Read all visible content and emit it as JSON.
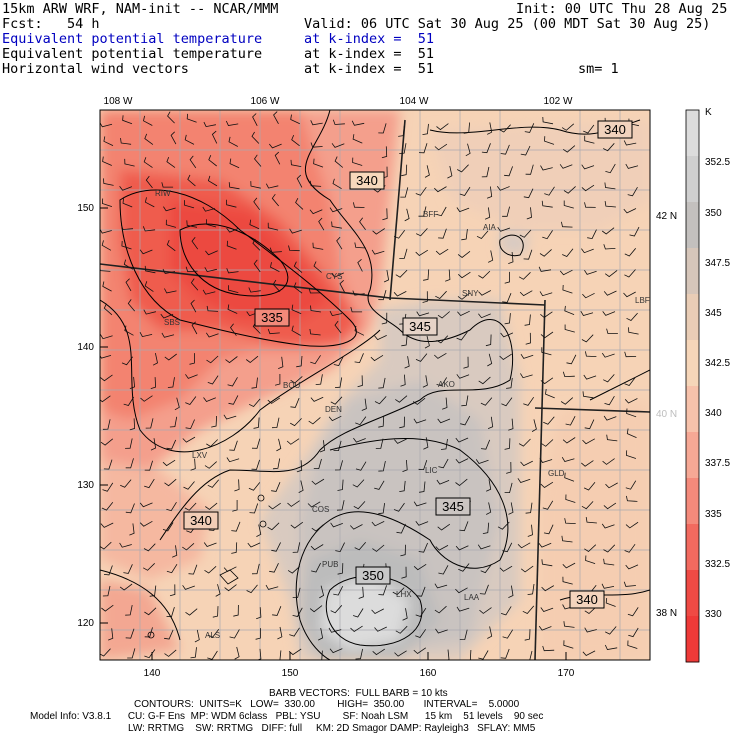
{
  "header": {
    "line1_left": "15km ARW WRF, NAM-init -- NCAR/MMM",
    "line1_right": "Init: 00 UTC Thu 28 Aug 25",
    "line2_left": "Fcst:   54 h",
    "line2_right": "Valid: 06 UTC Sat 30 Aug 25 (00 MDT Sat 30 Aug 25)",
    "line3_left": "Equivalent potential temperature",
    "line3_right": "at k-index =  51",
    "line4_left": "Equivalent potential temperature",
    "line4_right": "at k-index =  51",
    "line5_left": "Horizontal wind vectors",
    "line5_right": "at k-index =  51",
    "line5_sm": "sm= 1"
  },
  "map": {
    "top_lon_labels": [
      "108 W",
      "106 W",
      "104 W",
      "102 W"
    ],
    "right_lat_labels": [
      "42 N",
      "40 N",
      "38 N"
    ],
    "left_y_ticks": [
      "150",
      "140",
      "130",
      "120"
    ],
    "bottom_x_ticks": [
      "140",
      "150",
      "160",
      "170"
    ],
    "contour_labels": [
      "340",
      "340",
      "335",
      "345",
      "345",
      "340",
      "350",
      "340"
    ],
    "station_labels": [
      "RIW",
      "BFF",
      "AIA",
      "CYS",
      "SNY",
      "SBS",
      "LBF",
      "BOU",
      "AKO",
      "DEN",
      "LXV",
      "LIC",
      "GLD",
      "COS",
      "PUB",
      "LHX",
      "LAA",
      "ALS"
    ]
  },
  "colorbar": {
    "unit": "K",
    "labels": [
      "352.5",
      "350",
      "347.5",
      "345",
      "342.5",
      "340",
      "337.5",
      "335",
      "332.5",
      "330"
    ],
    "colors": [
      "#dcdcdc",
      "#cfcfcf",
      "#c3c0be",
      "#d6c6ba",
      "#e9cdb6",
      "#f6d6b9",
      "#f7c2ab",
      "#f6a895",
      "#f48a7b",
      "#f26a5f",
      "#ef4a44",
      "#ee3a38"
    ]
  },
  "footer": {
    "line1": "BARB VECTORS:  FULL BARB = 10 kts",
    "line2": "CONTOURS:  UNITS=K   LOW=  330.00        HIGH=  350.00       INTERVAL=    5.0000",
    "line3": "Model Info: V3.8.1      CU: G-F Ens  MP: WDM 6class   PBL: YSU        SF: Noah LSM      15 km    51 levels    90 sec",
    "line4": "LW: RRTMG    SW: RRTMG   DIFF: full     KM: 2D Smagor DAMP: Rayleigh3   SFLAY: MM5"
  }
}
